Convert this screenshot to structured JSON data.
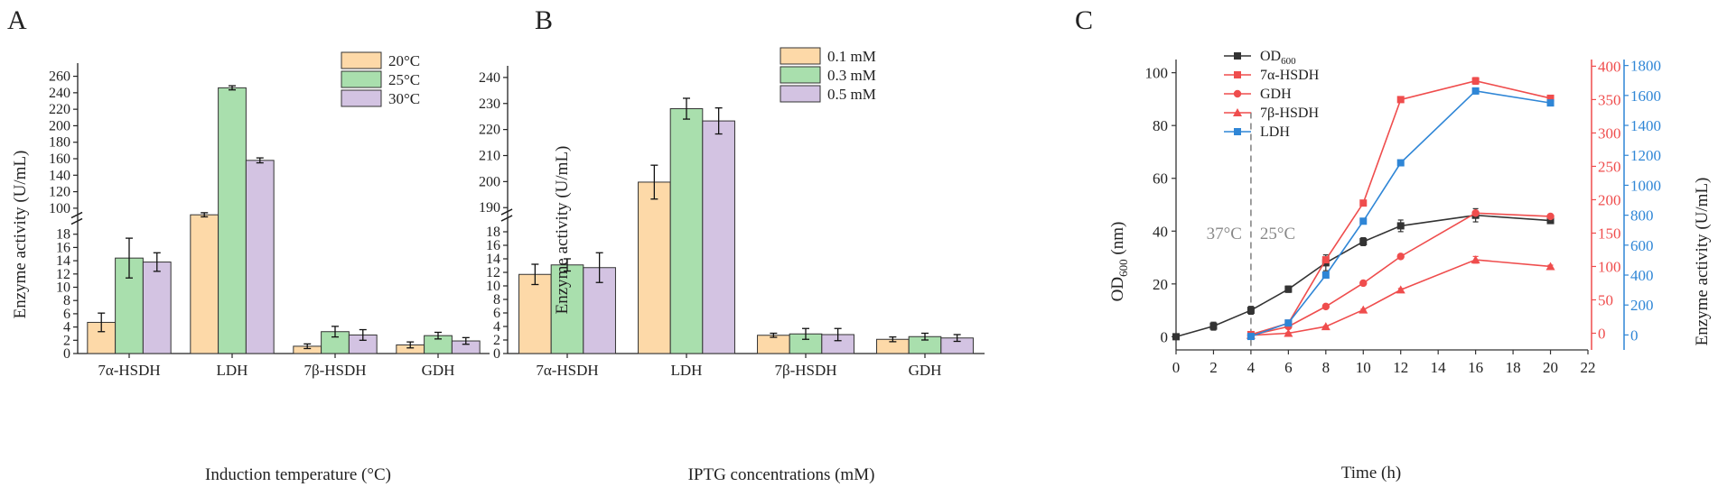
{
  "chart_data": [
    {
      "panel": "A",
      "type": "bar",
      "categories": [
        "7α-HSDH",
        "LDH",
        "7β-HSDH",
        "GDH"
      ],
      "series": [
        {
          "name": "20°C",
          "color": "#fdd9a8",
          "values": [
            4.7,
            92,
            1.1,
            1.3
          ],
          "errors": [
            1.4,
            2.5,
            0.35,
            0.45
          ]
        },
        {
          "name": "25°C",
          "color": "#a9dfad",
          "values": [
            14.4,
            246,
            3.3,
            2.7
          ],
          "errors": [
            3.0,
            2.5,
            0.8,
            0.5
          ]
        },
        {
          "name": "30°C",
          "color": "#d3c3e2",
          "values": [
            13.8,
            158,
            2.8,
            1.9
          ],
          "errors": [
            1.4,
            3.0,
            0.8,
            0.5
          ]
        }
      ],
      "xlabel": "Induction temperature (°C)",
      "ylabel": "Enzyme activity (U/mL)",
      "lower_ylim": [
        0,
        20
      ],
      "lower_ticks": [
        "0",
        "2",
        "4",
        "6",
        "8",
        "10",
        "12",
        "14",
        "16",
        "18"
      ],
      "upper_ylim": [
        90,
        265
      ],
      "upper_ticks": [
        "100",
        "120",
        "140",
        "160",
        "180",
        "200",
        "220",
        "240",
        "260"
      ],
      "legend": "top-right"
    },
    {
      "panel": "B",
      "type": "bar",
      "categories": [
        "7α-HSDH",
        "LDH",
        "7β-HSDH",
        "GDH"
      ],
      "series": [
        {
          "name": "0.1 mM",
          "color": "#fdd9a8",
          "values": [
            11.7,
            199.8,
            2.7,
            2.1
          ],
          "errors": [
            1.5,
            6.5,
            0.3,
            0.35
          ]
        },
        {
          "name": "0.3 mM",
          "color": "#a9dfad",
          "values": [
            13.1,
            228.0,
            2.9,
            2.5
          ],
          "errors": [
            0.9,
            4.0,
            0.8,
            0.5
          ]
        },
        {
          "name": "0.5 mM",
          "color": "#d3c3e2",
          "values": [
            12.7,
            223.3,
            2.8,
            2.3
          ],
          "errors": [
            2.2,
            5.0,
            0.9,
            0.5
          ]
        }
      ],
      "xlabel": "IPTG concentrations (mM)",
      "ylabel": "Enzyme activity (U/mL)",
      "lower_ylim": [
        0,
        20
      ],
      "lower_ticks": [
        "0",
        "2",
        "4",
        "6",
        "8",
        "10",
        "12",
        "14",
        "16",
        "18"
      ],
      "upper_ylim": [
        188,
        241
      ],
      "upper_ticks": [
        "190",
        "200",
        "210",
        "220",
        "230",
        "240"
      ],
      "legend": "top-right"
    },
    {
      "panel": "C",
      "type": "line",
      "xlabel": "Time (h)",
      "ylabel_left_main": "OD",
      "ylabel_left_sub": "600",
      "ylabel_left_tail": " (nm)",
      "ylabel_right": "Enzyme activity (U/mL)",
      "xlim": [
        0,
        22
      ],
      "x_ticks": [
        "0",
        "2",
        "4",
        "6",
        "8",
        "10",
        "12",
        "14",
        "16",
        "18",
        "20",
        "22"
      ],
      "left_ylim": [
        -5,
        105
      ],
      "left_ticks": [
        "0",
        "20",
        "40",
        "60",
        "80",
        "100"
      ],
      "red_ylim": [
        -25,
        410
      ],
      "red_ticks": [
        "0",
        "50",
        "100",
        "150",
        "200",
        "250",
        "300",
        "350",
        "400"
      ],
      "blue_ylim": [
        -100,
        1840
      ],
      "blue_ticks": [
        "0",
        "200",
        "400",
        "600",
        "800",
        "1000",
        "1200",
        "1400",
        "1600",
        "1800"
      ],
      "induction_line_x": 4,
      "phase_labels": [
        "37°C",
        "25°C"
      ],
      "legend": "top-left",
      "series": [
        {
          "name_main": "OD",
          "name_sub": "600",
          "axis": "left",
          "color": "#333333",
          "marker": "square",
          "x": [
            0,
            2,
            4,
            6,
            8,
            10,
            12,
            16,
            20
          ],
          "y": [
            0,
            4,
            10,
            18,
            28,
            36,
            42,
            46,
            44
          ],
          "err": [
            0.5,
            1.5,
            1.5,
            1.2,
            3,
            1.5,
            2.2,
            2.5,
            1
          ]
        },
        {
          "name_main": "7α-HSDH",
          "name_sub": "",
          "axis": "red",
          "color": "#ef4d4d",
          "marker": "square",
          "x": [
            4,
            6,
            8,
            10,
            12,
            16,
            20
          ],
          "y": [
            -2,
            15,
            110,
            195,
            350,
            378,
            352
          ],
          "err": [
            2,
            2,
            3,
            3,
            3,
            5,
            4
          ]
        },
        {
          "name_main": "GDH",
          "name_sub": "",
          "axis": "red",
          "color": "#ef4d4d",
          "marker": "circle",
          "x": [
            4,
            6,
            8,
            10,
            12,
            16,
            20
          ],
          "y": [
            -3,
            10,
            40,
            75,
            115,
            180,
            175
          ],
          "err": [
            1,
            1,
            1,
            1,
            2,
            3,
            2
          ]
        },
        {
          "name_main": "7β-HSDH",
          "name_sub": "",
          "axis": "red",
          "color": "#ef4d4d",
          "marker": "triangle",
          "x": [
            4,
            6,
            8,
            10,
            12,
            16,
            20
          ],
          "y": [
            -3,
            0,
            10,
            35,
            65,
            110,
            100
          ],
          "err": [
            1,
            1,
            1,
            1,
            2,
            5,
            2
          ]
        },
        {
          "name_main": "LDH",
          "name_sub": "",
          "axis": "blue",
          "color": "#2f86d6",
          "marker": "square",
          "x": [
            4,
            6,
            8,
            10,
            12,
            16,
            20
          ],
          "y": [
            -10,
            80,
            400,
            760,
            1150,
            1630,
            1550
          ],
          "err": [
            5,
            5,
            10,
            15,
            15,
            20,
            15
          ]
        }
      ]
    }
  ],
  "panel_letters": [
    "A",
    "B",
    "C"
  ]
}
